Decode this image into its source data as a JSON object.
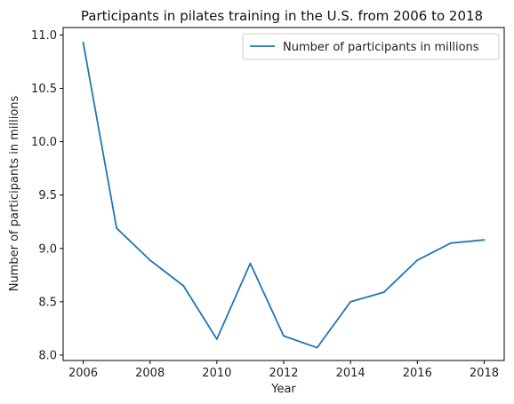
{
  "chart_data": {
    "type": "line",
    "title": "Participants in pilates training in the U.S. from 2006 to 2018",
    "xlabel": "Year",
    "ylabel": "Number of participants in millions",
    "x": [
      2006,
      2007,
      2008,
      2009,
      2010,
      2011,
      2012,
      2013,
      2014,
      2015,
      2016,
      2017,
      2018
    ],
    "series": [
      {
        "name": "Number of participants in millions",
        "values": [
          10.93,
          9.19,
          8.89,
          8.65,
          8.15,
          8.86,
          8.18,
          8.07,
          8.5,
          8.59,
          8.89,
          9.05,
          9.08
        ],
        "color": "#1f77b4"
      }
    ],
    "xlim": [
      2005.4,
      2018.6
    ],
    "ylim": [
      7.95,
      11.07
    ],
    "xticks": [
      "2006",
      "2008",
      "2010",
      "2012",
      "2014",
      "2016",
      "2018"
    ],
    "yticks": [
      "8.0",
      "8.5",
      "9.0",
      "9.5",
      "10.0",
      "10.5",
      "11.0"
    ],
    "grid": false,
    "legend_position": "top-right"
  }
}
